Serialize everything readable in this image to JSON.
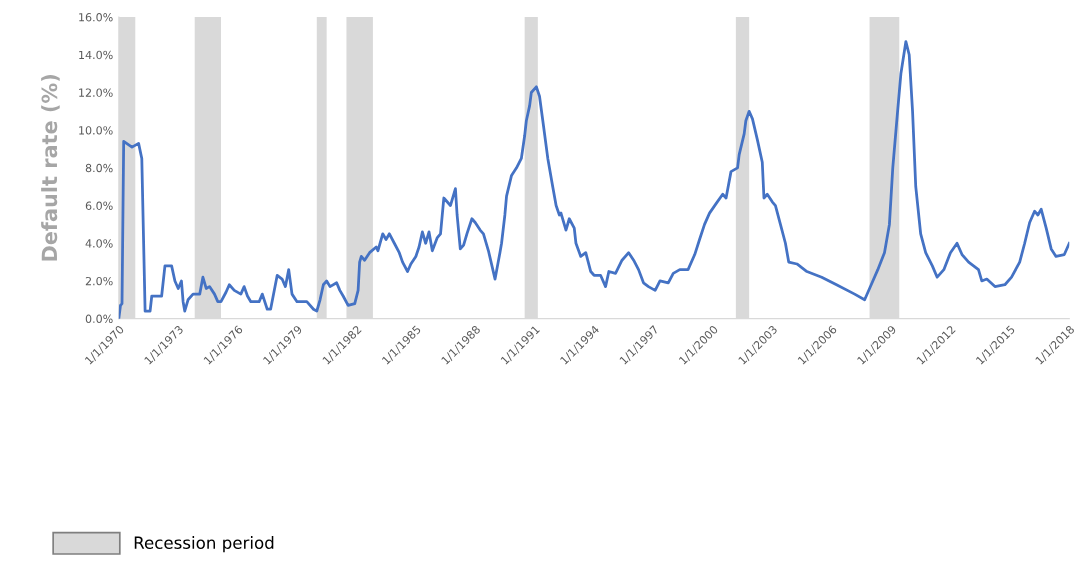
{
  "chart_data": {
    "type": "line",
    "ylabel": "Default rate (%)",
    "x": [
      "1970-01",
      "1970-02",
      "1970-03",
      "1970-04",
      "1970-09",
      "1971-01",
      "1971-03",
      "1971-05",
      "1971-08",
      "1971-09",
      "1972-03",
      "1972-05",
      "1972-09",
      "1972-11",
      "1973-01",
      "1973-03",
      "1973-04",
      "1973-05",
      "1973-07",
      "1973-10",
      "1974-02",
      "1974-04",
      "1974-06",
      "1974-08",
      "1974-11",
      "1975-01",
      "1975-03",
      "1975-06",
      "1975-08",
      "1975-11",
      "1976-03",
      "1976-05",
      "1976-07",
      "1976-09",
      "1977-02",
      "1977-04",
      "1977-07",
      "1977-09",
      "1977-11",
      "1978-01",
      "1978-04",
      "1978-06",
      "1978-08",
      "1978-10",
      "1979-01",
      "1979-07",
      "1979-11",
      "1980-01",
      "1980-03",
      "1980-05",
      "1980-07",
      "1980-09",
      "1981-01",
      "1981-03",
      "1981-05",
      "1981-08",
      "1981-12",
      "1982-02",
      "1982-03",
      "1982-04",
      "1982-06",
      "1982-09",
      "1983-01",
      "1983-02",
      "1983-05",
      "1983-07",
      "1983-09",
      "1983-12",
      "1984-03",
      "1984-05",
      "1984-08",
      "1984-10",
      "1985-01",
      "1985-03",
      "1985-05",
      "1985-07",
      "1985-09",
      "1985-11",
      "1986-02",
      "1986-04",
      "1986-06",
      "1986-08",
      "1986-10",
      "1987-01",
      "1987-02",
      "1987-04",
      "1987-06",
      "1987-08",
      "1987-11",
      "1988-01",
      "1988-04",
      "1988-06",
      "1988-09",
      "1989-01",
      "1989-04",
      "1989-05",
      "1989-07",
      "1989-08",
      "1989-11",
      "1990-02",
      "1990-05",
      "1990-07",
      "1990-08",
      "1990-10",
      "1990-11",
      "1991-02",
      "1991-04",
      "1991-06",
      "1991-09",
      "1991-12",
      "1992-02",
      "1992-04",
      "1992-05",
      "1992-08",
      "1992-10",
      "1993-01",
      "1993-02",
      "1993-05",
      "1993-08",
      "1993-11",
      "1994-01",
      "1994-05",
      "1994-08",
      "1994-10",
      "1995-02",
      "1995-06",
      "1995-10",
      "1996-01",
      "1996-04",
      "1996-07",
      "1996-10",
      "1997-02",
      "1997-05",
      "1997-10",
      "1998-01",
      "1998-05",
      "1998-10",
      "1999-02",
      "1999-05",
      "1999-08",
      "1999-11",
      "2000-03",
      "2000-07",
      "2000-09",
      "2000-12",
      "2001-04",
      "2001-05",
      "2001-08",
      "2001-09",
      "2001-11",
      "2002-01",
      "2002-04",
      "2002-07",
      "2002-08",
      "2002-10",
      "2003-01",
      "2003-03",
      "2003-06",
      "2003-09",
      "2003-11",
      "2004-04",
      "2004-10",
      "2005-07",
      "2006-04",
      "2007-03",
      "2007-09",
      "2007-12",
      "2008-05",
      "2008-09",
      "2008-12",
      "2009-02",
      "2009-05",
      "2009-07",
      "2009-10",
      "2009-12",
      "2010-02",
      "2010-04",
      "2010-07",
      "2010-10",
      "2011-02",
      "2011-05",
      "2011-09",
      "2012-01",
      "2012-05",
      "2012-08",
      "2012-12",
      "2013-06",
      "2013-08",
      "2013-11",
      "2014-04",
      "2014-10",
      "2015-02",
      "2015-07",
      "2015-10",
      "2016-01",
      "2016-04",
      "2016-06",
      "2016-08",
      "2016-11",
      "2017-02",
      "2017-05",
      "2017-10",
      "2018-01"
    ],
    "series": [
      {
        "color": "#4472c4",
        "values": [
          0.0,
          0.7,
          0.8,
          9.4,
          9.1,
          9.3,
          8.5,
          0.4,
          0.4,
          1.2,
          1.2,
          2.8,
          2.8,
          2.0,
          1.6,
          2.0,
          0.9,
          0.4,
          1.0,
          1.3,
          1.3,
          2.2,
          1.6,
          1.7,
          1.3,
          0.9,
          0.9,
          1.4,
          1.8,
          1.5,
          1.3,
          1.7,
          1.2,
          0.9,
          0.9,
          1.3,
          0.5,
          0.5,
          1.4,
          2.3,
          2.1,
          1.7,
          2.6,
          1.3,
          0.9,
          0.9,
          0.5,
          0.4,
          1.0,
          1.8,
          2.0,
          1.7,
          1.9,
          1.5,
          1.2,
          0.7,
          0.8,
          1.5,
          3.0,
          3.3,
          3.1,
          3.5,
          3.8,
          3.6,
          4.5,
          4.2,
          4.5,
          4.0,
          3.5,
          3.0,
          2.5,
          2.9,
          3.3,
          3.8,
          4.6,
          4.0,
          4.6,
          3.6,
          4.3,
          4.5,
          6.4,
          6.2,
          6.0,
          6.9,
          5.5,
          3.7,
          3.9,
          4.5,
          5.3,
          5.1,
          4.7,
          4.5,
          3.6,
          2.1,
          3.5,
          4.0,
          5.5,
          6.5,
          7.6,
          8.0,
          8.5,
          9.7,
          10.5,
          11.3,
          12.0,
          12.3,
          11.8,
          10.5,
          8.5,
          7.0,
          6.0,
          5.5,
          5.6,
          4.7,
          5.3,
          4.8,
          4.0,
          3.3,
          3.5,
          2.5,
          2.3,
          2.3,
          1.7,
          2.5,
          2.4,
          3.1,
          3.5,
          3.1,
          2.6,
          1.9,
          1.7,
          1.5,
          2.0,
          1.9,
          2.4,
          2.6,
          2.6,
          3.4,
          4.2,
          5.0,
          5.6,
          6.1,
          6.6,
          6.4,
          7.8,
          8.0,
          8.7,
          9.8,
          10.5,
          11.0,
          10.6,
          9.5,
          8.3,
          6.4,
          6.6,
          6.2,
          6.0,
          5.0,
          4.0,
          3.0,
          2.9,
          2.5,
          2.2,
          1.8,
          1.3,
          1.0,
          1.6,
          2.6,
          3.5,
          5.0,
          8.0,
          11.0,
          13.0,
          14.7,
          14.0,
          11.0,
          7.0,
          4.5,
          3.5,
          2.8,
          2.2,
          2.6,
          3.5,
          4.0,
          3.4,
          3.0,
          2.6,
          2.0,
          2.1,
          1.7,
          1.8,
          2.2,
          3.0,
          4.0,
          5.1,
          5.7,
          5.5,
          5.8,
          4.8,
          3.7,
          3.3,
          3.4,
          4.0
        ]
      }
    ],
    "xlim": [
      "1970-01-01",
      "2018-01-01"
    ],
    "xticks": [
      {
        "value": "1970-01-01",
        "label": "1/1/1970"
      },
      {
        "value": "1973-01-01",
        "label": "1/1/1973"
      },
      {
        "value": "1976-01-01",
        "label": "1/1/1976"
      },
      {
        "value": "1979-01-01",
        "label": "1/1/1979"
      },
      {
        "value": "1982-01-01",
        "label": "1/1/1982"
      },
      {
        "value": "1985-01-01",
        "label": "1/1/1985"
      },
      {
        "value": "1988-01-01",
        "label": "1/1/1988"
      },
      {
        "value": "1991-01-01",
        "label": "1/1/1991"
      },
      {
        "value": "1994-01-01",
        "label": "1/1/1994"
      },
      {
        "value": "1997-01-01",
        "label": "1/1/1997"
      },
      {
        "value": "2000-01-01",
        "label": "1/1/2000"
      },
      {
        "value": "2003-01-01",
        "label": "1/1/2003"
      },
      {
        "value": "2006-01-01",
        "label": "1/1/2006"
      },
      {
        "value": "2009-01-01",
        "label": "1/1/2009"
      },
      {
        "value": "2012-01-01",
        "label": "1/1/2012"
      },
      {
        "value": "2015-01-01",
        "label": "1/1/2015"
      },
      {
        "value": "2018-01-01",
        "label": "1/1/2018"
      }
    ],
    "ylim": [
      0,
      16
    ],
    "yticks": [
      {
        "value": 0,
        "label": "0.0%"
      },
      {
        "value": 2,
        "label": "2.0%"
      },
      {
        "value": 4,
        "label": "4.0%"
      },
      {
        "value": 6,
        "label": "6.0%"
      },
      {
        "value": 8,
        "label": "8.0%"
      },
      {
        "value": 10,
        "label": "10.0%"
      },
      {
        "value": 12,
        "label": "12.0%"
      },
      {
        "value": 14,
        "label": "14.0%"
      },
      {
        "value": 16,
        "label": "16.0%"
      }
    ],
    "bands": [
      {
        "axis": "x",
        "from": "1970-01",
        "to": "1970-11",
        "label": "Recession period",
        "color": "#d9d9d9"
      },
      {
        "axis": "x",
        "from": "1973-11",
        "to": "1975-03",
        "color": "#d9d9d9"
      },
      {
        "axis": "x",
        "from": "1980-01",
        "to": "1980-07",
        "color": "#d9d9d9"
      },
      {
        "axis": "x",
        "from": "1981-07",
        "to": "1982-11",
        "color": "#d9d9d9"
      },
      {
        "axis": "x",
        "from": "1990-07",
        "to": "1991-03",
        "color": "#d9d9d9"
      },
      {
        "axis": "x",
        "from": "2001-03",
        "to": "2001-11",
        "color": "#d9d9d9"
      },
      {
        "axis": "x",
        "from": "2007-12",
        "to": "2009-06",
        "color": "#d9d9d9"
      }
    ],
    "grid": false,
    "legend": "bottom left",
    "marker": "none",
    "line_style": "solid"
  }
}
